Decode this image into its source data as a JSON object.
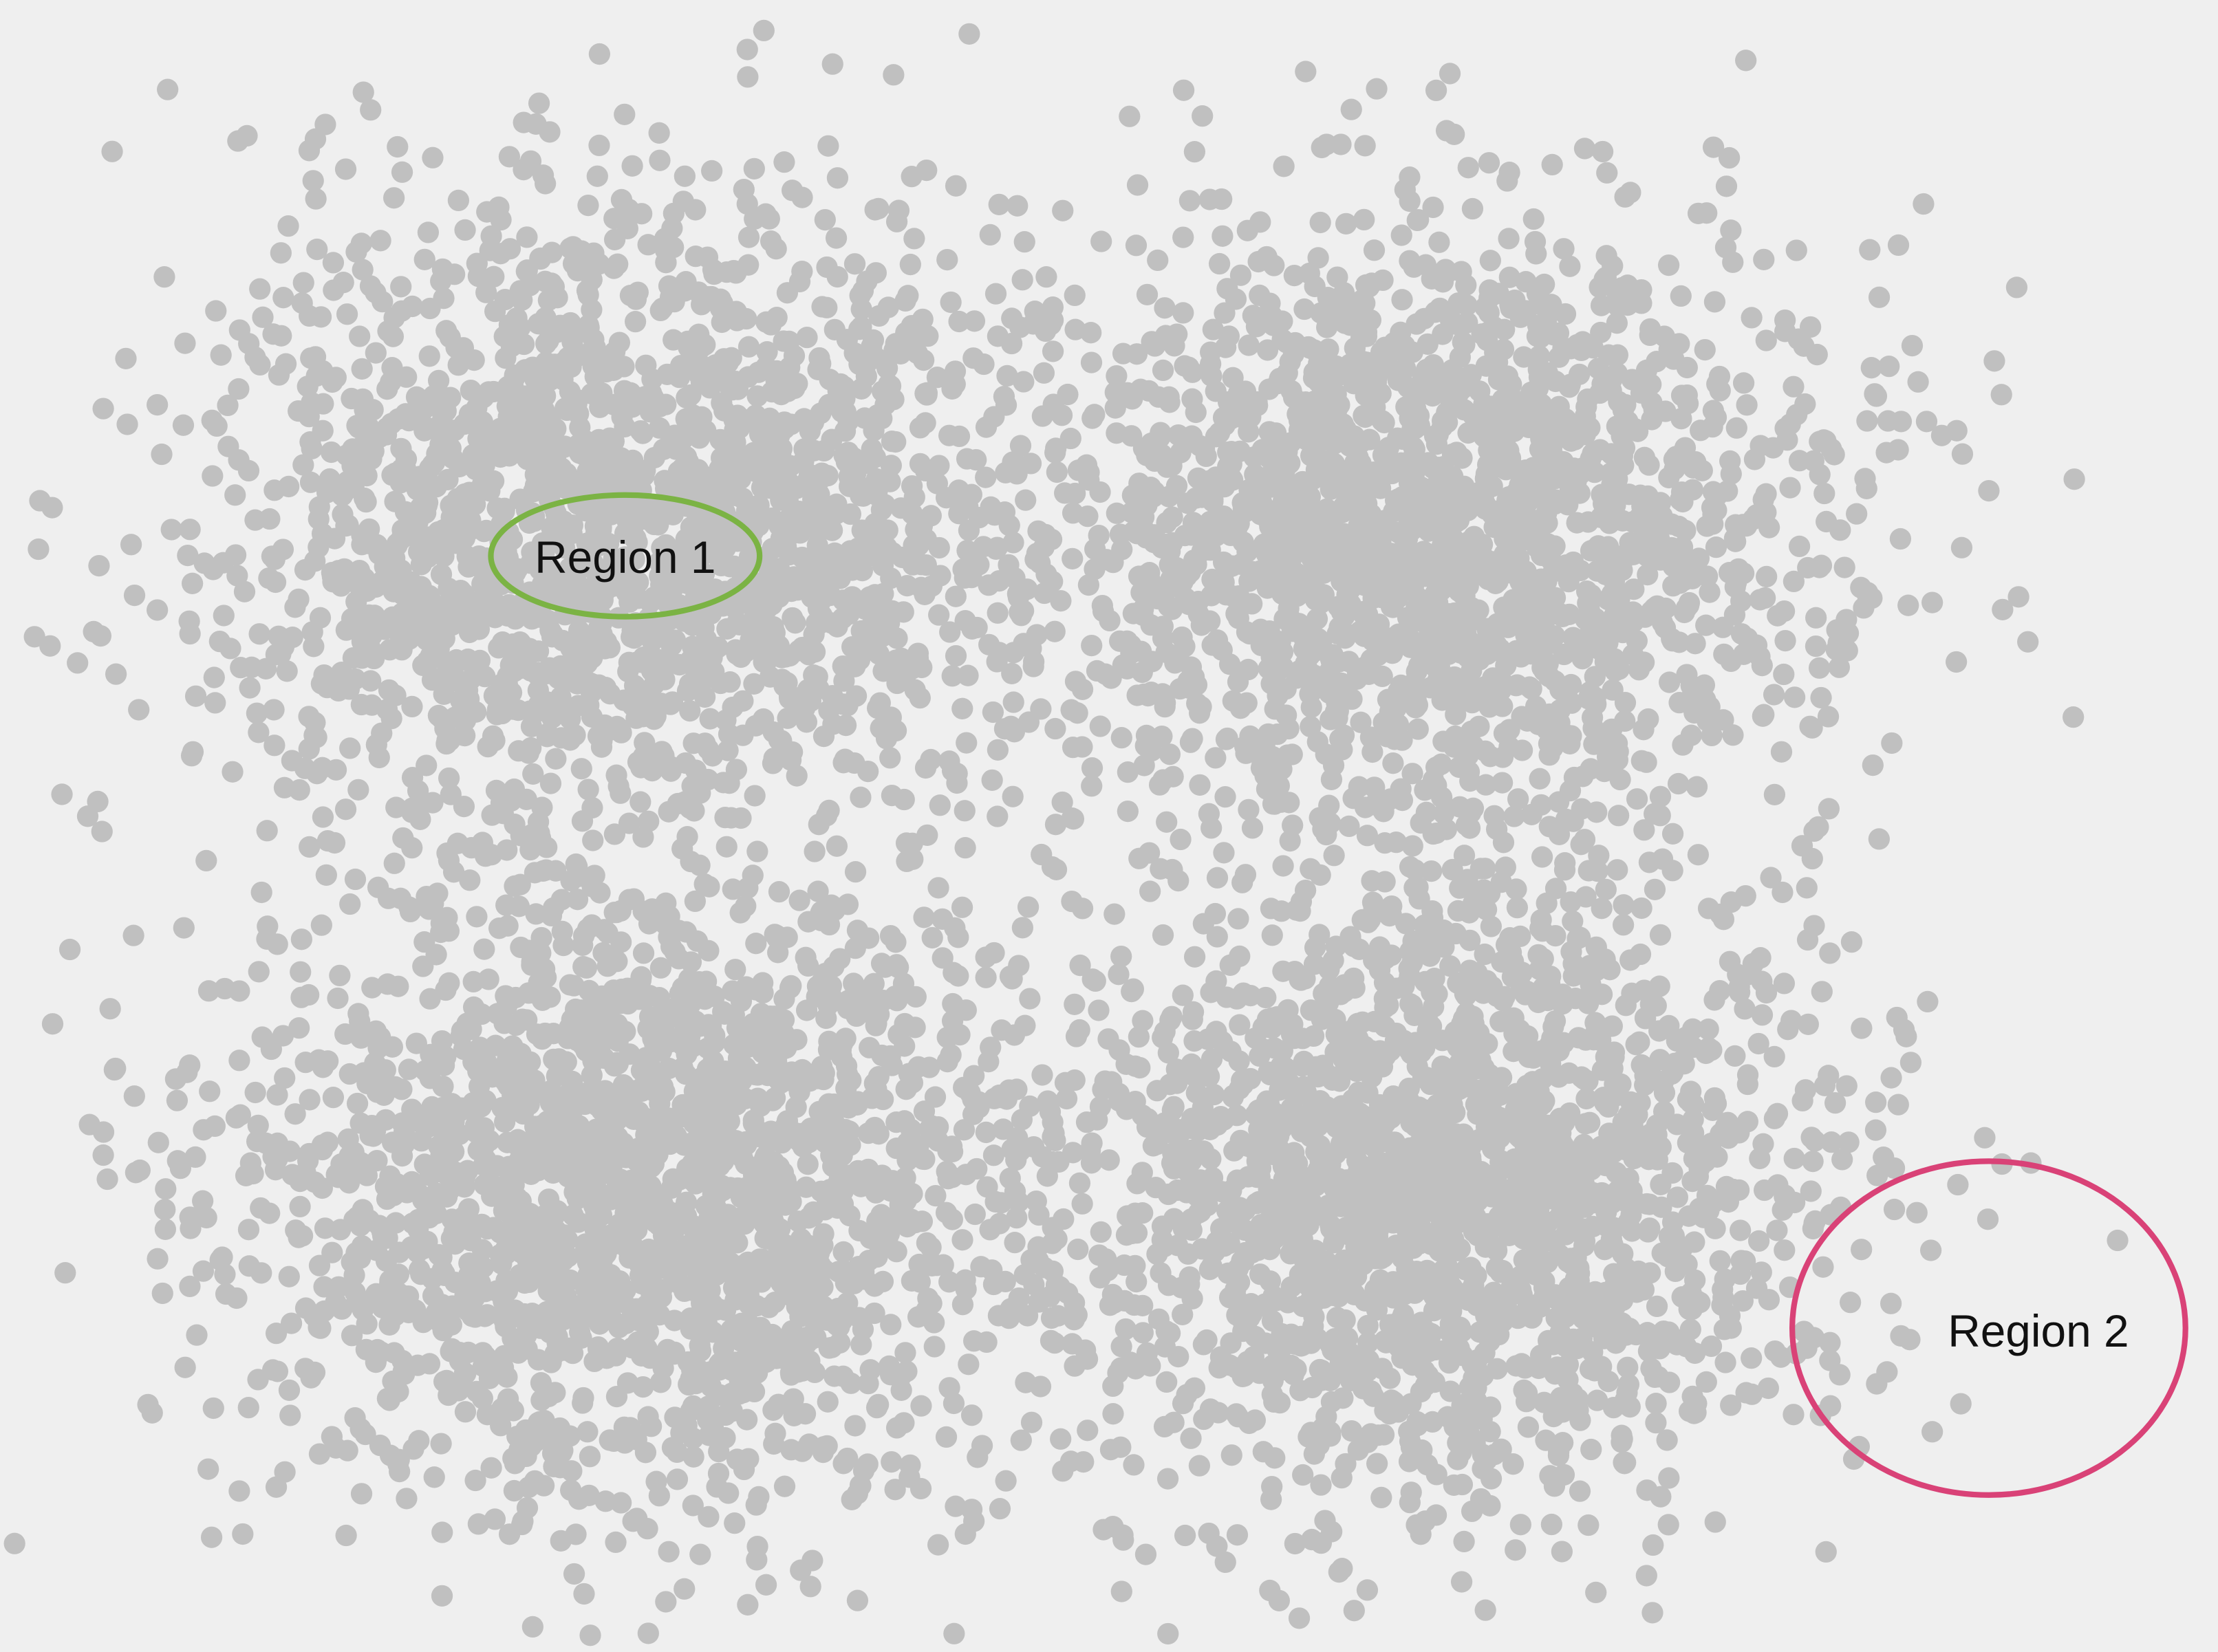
{
  "chart_data": {
    "type": "scatter",
    "title": "",
    "xlabel": "",
    "ylabel": "",
    "xlim": [
      0,
      1568
    ],
    "ylim": [
      0,
      1168
    ],
    "grid": false,
    "legend": "none",
    "axes_visible": false,
    "point_color": "#c0c0c0",
    "background_color": "#efefef",
    "point_count_approx": 8000,
    "clusters": [
      {
        "name": "",
        "center": [
          440,
          375
        ],
        "spread": [
          145,
          115
        ],
        "count": 2000
      },
      {
        "name": "",
        "center": [
          1010,
          375
        ],
        "spread": [
          140,
          110
        ],
        "count": 2000
      },
      {
        "name": "",
        "center": [
          450,
          840
        ],
        "spread": [
          145,
          115
        ],
        "count": 2000
      },
      {
        "name": "",
        "center": [
          1015,
          840
        ],
        "spread": [
          140,
          110
        ],
        "count": 2000
      }
    ],
    "outliers": [
      [
        230,
        88
      ],
      [
        466,
        94
      ],
      [
        90,
        300
      ],
      [
        70,
        400
      ],
      [
        850,
        82
      ],
      [
        1025,
        52
      ],
      [
        1028,
        95
      ],
      [
        965,
        103
      ],
      [
        700,
        166
      ],
      [
        1220,
        175
      ],
      [
        1270,
        177
      ],
      [
        1406,
        347
      ],
      [
        1427,
        422
      ],
      [
        1383,
        468
      ],
      [
        1324,
        541
      ],
      [
        1274,
        598
      ],
      [
        1309,
        666
      ],
      [
        130,
        656
      ],
      [
        183,
        687
      ],
      [
        95,
        775
      ],
      [
        96,
        829
      ],
      [
        1365,
        884
      ],
      [
        1497,
        877
      ],
      [
        1334,
        970
      ],
      [
        1294,
        994
      ],
      [
        1164,
        1114
      ],
      [
        934,
        1091
      ],
      [
        810,
        1099
      ],
      [
        495,
        1099
      ],
      [
        1344,
        298
      ],
      [
        1362,
        298
      ],
      [
        1356,
        270
      ],
      [
        1323,
        260
      ],
      [
        1306,
        460
      ],
      [
        1349,
        428
      ],
      [
        1366,
        426
      ],
      [
        1320,
        420
      ],
      [
        1346,
        728
      ],
      [
        1316,
        727
      ],
      [
        1337,
        762
      ],
      [
        1326,
        799
      ],
      [
        1342,
        781
      ]
    ],
    "annotations": [
      {
        "label": "Region 1",
        "shape": "ellipse",
        "color": "#7bb344",
        "center": [
          442,
          393
        ],
        "radii": [
          95,
          43
        ]
      },
      {
        "label": "Region 2",
        "shape": "ellipse",
        "color": "#d94277",
        "center": [
          1406,
          939
        ],
        "radii": [
          139,
          118
        ]
      }
    ]
  }
}
